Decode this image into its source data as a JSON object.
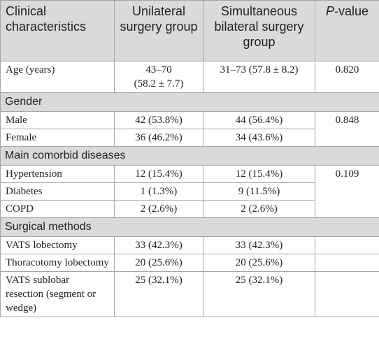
{
  "header": {
    "cells": [
      "Clinical characteristics",
      "Unilateral surgery group",
      "Simultaneous bilateral surgery group"
    ],
    "p_value": {
      "italic": "P",
      "rest": "-value"
    }
  },
  "sections": [
    {
      "rows": [
        {
          "label": "Age (years)",
          "unilateral": [
            "43–70",
            "(58.2 ± 7.7)"
          ],
          "bilateral": [
            "31–73 (57.8 ± 8.2)"
          ]
        }
      ],
      "p_value": "0.820"
    },
    {
      "title": "Gender",
      "rows": [
        {
          "label": "Male",
          "unilateral": [
            "42 (53.8%)"
          ],
          "bilateral": [
            "44 (56.4%)"
          ]
        },
        {
          "label": "Female",
          "unilateral": [
            "36 (46.2%)"
          ],
          "bilateral": [
            "34 (43.6%)"
          ]
        }
      ],
      "p_value": "0.848"
    },
    {
      "title": "Main comorbid diseases",
      "rows": [
        {
          "label": "Hypertension",
          "unilateral": [
            "12 (15.4%)"
          ],
          "bilateral": [
            "12 (15.4%)"
          ]
        },
        {
          "label": "Diabetes",
          "unilateral": [
            "1 (1.3%)"
          ],
          "bilateral": [
            "9 (11.5%)"
          ]
        },
        {
          "label": "COPD",
          "unilateral": [
            "2 (2.6%)"
          ],
          "bilateral": [
            "2 (2.6%)"
          ]
        }
      ],
      "p_value": "0.109"
    },
    {
      "title": "Surgical methods",
      "rows": [
        {
          "label": "VATS lobectomy",
          "unilateral": [
            "33 (42.3%)"
          ],
          "bilateral": [
            "33 (42.3%)"
          ]
        },
        {
          "label": "Thoracotomy lobectomy",
          "unilateral": [
            "20 (25.6%)"
          ],
          "bilateral": [
            "20 (25.6%)"
          ]
        },
        {
          "label": "VATS sublobar resection (segment or wedge)",
          "unilateral": [
            "25 (32.1%)"
          ],
          "bilateral": [
            "25 (32.1%)"
          ]
        }
      ]
    }
  ]
}
